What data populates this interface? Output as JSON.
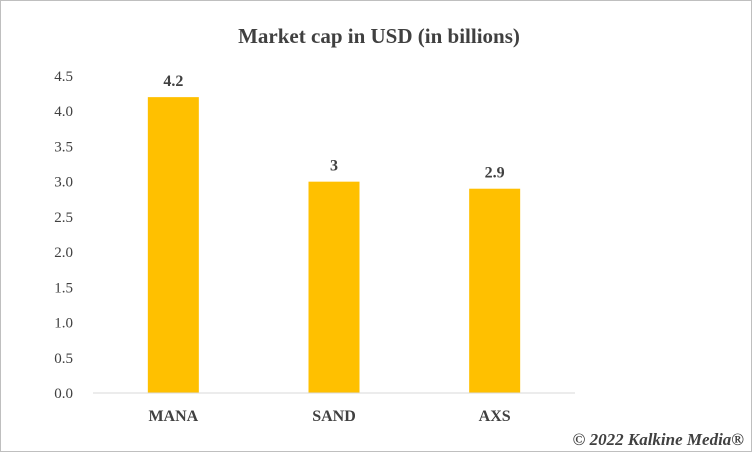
{
  "chart_data": {
    "type": "bar",
    "title": "Market cap in USD (in billions)",
    "categories": [
      "MANA",
      "SAND",
      "AXS"
    ],
    "values": [
      4.2,
      3,
      2.9
    ],
    "data_labels": [
      "4.2",
      "3",
      "2.9"
    ],
    "ylim": [
      0,
      4.5
    ],
    "yticks": [
      "0.0",
      "0.5",
      "1.0",
      "1.5",
      "2.0",
      "2.5",
      "3.0",
      "3.5",
      "4.0",
      "4.5"
    ],
    "xlabel": "",
    "ylabel": "",
    "grid": false,
    "legend": "none",
    "bar_color": "#FFC000"
  },
  "watermark": "© 2022 Kalkine Media®"
}
